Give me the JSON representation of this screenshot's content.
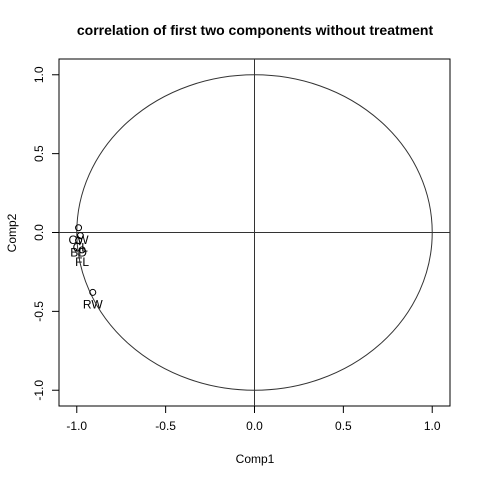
{
  "chart_data": {
    "type": "scatter",
    "title": "correlation of first two components without treatment",
    "xlabel": "Comp1",
    "ylabel": "Comp2",
    "xlim": [
      -1.1,
      1.1
    ],
    "ylim": [
      -1.1,
      1.1
    ],
    "xticks": [
      -1.0,
      -0.5,
      0.0,
      0.5,
      1.0
    ],
    "yticks": [
      -1.0,
      -0.5,
      0.0,
      0.5,
      1.0
    ],
    "xtick_labels": [
      "-1.0",
      "-0.5",
      "0.0",
      "0.5",
      "1.0"
    ],
    "ytick_labels": [
      "-1.0",
      "-0.5",
      "0.0",
      "0.5",
      "1.0"
    ],
    "circle_radius": 1.0,
    "reference_lines": {
      "x": 0,
      "y": 0
    },
    "grid": false,
    "points": [
      {
        "label": "CW",
        "x": -0.99,
        "y": 0.03
      },
      {
        "label": "CL",
        "x": -0.98,
        "y": -0.02
      },
      {
        "label": "BD",
        "x": -0.99,
        "y": -0.05
      },
      {
        "label": "FL",
        "x": -0.97,
        "y": -0.11
      },
      {
        "label": "RW",
        "x": -0.91,
        "y": -0.38
      }
    ]
  }
}
